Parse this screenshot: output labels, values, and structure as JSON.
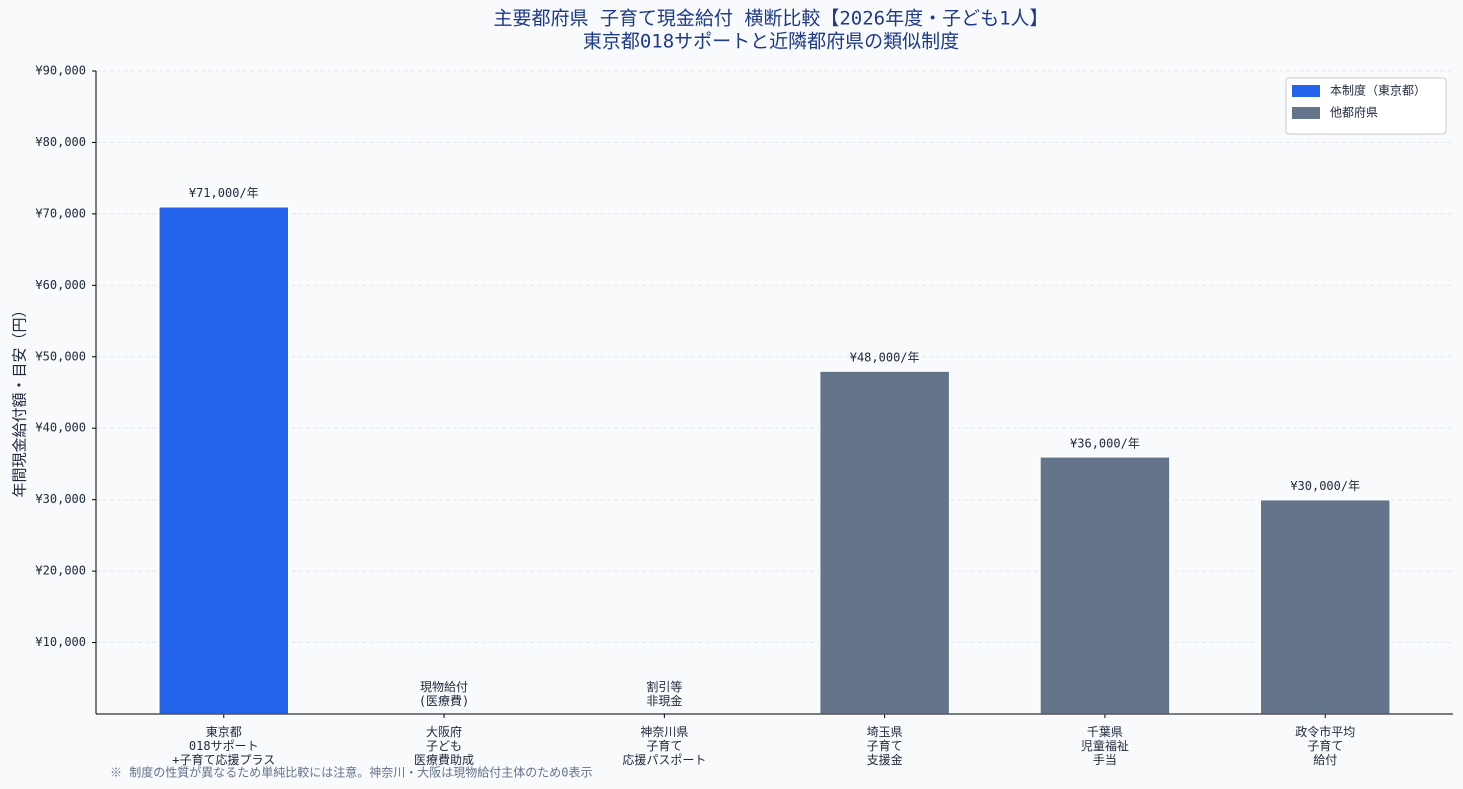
{
  "chart_data": {
    "type": "bar",
    "title": "主要都府県 子育て現金給付 横断比較【2026年度・子ども1人】",
    "subtitle": "東京都018サポートと近隣都府県の類似制度",
    "y_label": "年間現金給付額・目安（円）",
    "categories": [
      "東京都\n018サポート\n+子育て応援プラス",
      "大阪府\n子ども\n医療費助成",
      "神奈川県\n子育て\n応援パスポート",
      "埼玉県\n子育て\n支援金",
      "千葉県\n児童福祉\n手当",
      "政令市平均\n子育て\n給付"
    ],
    "values": [
      71000,
      0,
      0,
      48000,
      36000,
      30000
    ],
    "value_labels": [
      "¥71,000/年",
      "現物給付\n(医療費)",
      "割引等\n非現金",
      "¥48,000/年",
      "¥36,000/年",
      "¥30,000/年"
    ],
    "colors": [
      "#2563eb",
      "#64748b",
      "#64748b",
      "#64748b",
      "#64748b",
      "#64748b"
    ],
    "legend": [
      {
        "name": "本制度（東京都）",
        "color": "#2563eb"
      },
      {
        "name": "他都府県",
        "color": "#64748b"
      }
    ],
    "legend_position": "upper right",
    "ylim": [
      0,
      90000
    ],
    "yticks": [
      {
        "value": 10000,
        "label": "¥10,000"
      },
      {
        "value": 20000,
        "label": "¥20,000"
      },
      {
        "value": 30000,
        "label": "¥30,000"
      },
      {
        "value": 40000,
        "label": "¥40,000"
      },
      {
        "value": 50000,
        "label": "¥50,000"
      },
      {
        "value": 60000,
        "label": "¥60,000"
      },
      {
        "value": 70000,
        "label": "¥70,000"
      },
      {
        "value": 80000,
        "label": "¥80,000"
      },
      {
        "value": 90000,
        "label": "¥90,000"
      }
    ],
    "grid": true,
    "footnote": "※ 制度の性質が異なるため単純比較には注意。神奈川・大阪は現物給付主体のため0表示"
  }
}
